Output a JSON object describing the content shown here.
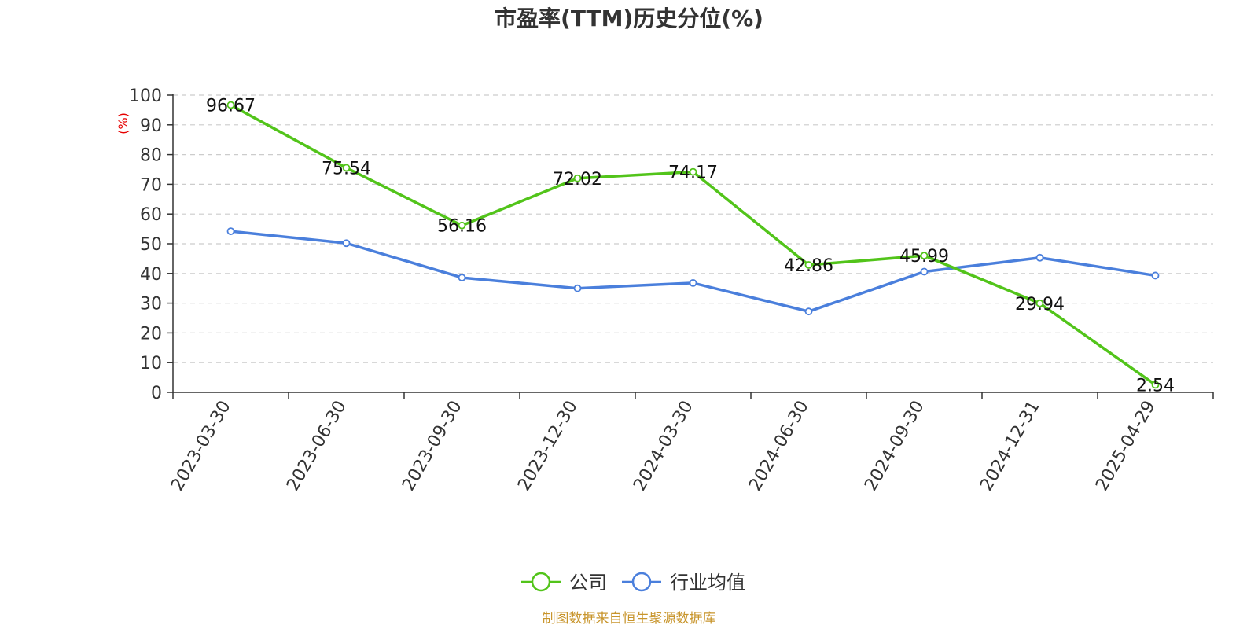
{
  "chart_data": {
    "type": "line",
    "title": "市盈率(TTM)历史分位(%)",
    "ylabel": "(%)",
    "xlabel": "",
    "categories": [
      "2023-03-30",
      "2023-06-30",
      "2023-09-30",
      "2023-12-30",
      "2024-03-30",
      "2024-06-30",
      "2024-09-30",
      "2024-12-31",
      "2025-04-29"
    ],
    "ylim": [
      0,
      100
    ],
    "yticks": [
      0,
      10,
      20,
      30,
      40,
      50,
      60,
      70,
      80,
      90,
      100
    ],
    "grid": true,
    "legend_position": "bottom-center",
    "series": [
      {
        "name": "公司",
        "color": "#52c41a",
        "values": [
          96.67,
          75.54,
          56.16,
          72.02,
          74.17,
          42.86,
          45.99,
          29.94,
          2.54
        ],
        "labels": [
          "96.67",
          "75.54",
          "56.16",
          "72.02",
          "74.17",
          "42.86",
          "45.99",
          "29.94",
          "2.54"
        ],
        "show_labels": true
      },
      {
        "name": "行业均值",
        "color": "#4a7fdc",
        "values": [
          54.2,
          50.2,
          38.6,
          35.0,
          36.8,
          27.2,
          40.6,
          45.3,
          39.3
        ],
        "show_labels": false
      }
    ]
  },
  "source_note": "制图数据来自恒生聚源数据库",
  "colors": {
    "axis": "#333333",
    "grid": "#cccccc"
  }
}
